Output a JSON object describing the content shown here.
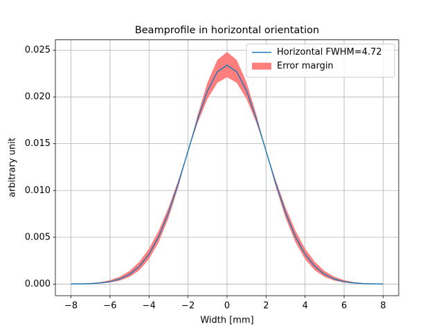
{
  "chart_data": {
    "type": "line",
    "title": "Beamprofile in horizontal orientation",
    "xlabel": "Width [mm]",
    "ylabel": "arbitrary unit",
    "x": [
      -8,
      -7.5,
      -7,
      -6.5,
      -6,
      -5.5,
      -5,
      -4.5,
      -4,
      -3.5,
      -3,
      -2.5,
      -2,
      -1.5,
      -1,
      -0.5,
      0,
      0.5,
      1,
      1.5,
      2,
      2.5,
      3,
      3.5,
      4,
      4.5,
      5,
      5.5,
      6,
      6.5,
      7,
      7.5,
      8
    ],
    "series": [
      {
        "name": "Horizontal FWHM=4.72",
        "color": "#1f77b4",
        "values": [
          1e-05,
          2e-05,
          5e-05,
          0.00012,
          0.00026,
          0.00054,
          0.00104,
          0.00188,
          0.00319,
          0.00509,
          0.00763,
          0.01075,
          0.01422,
          0.01768,
          0.02066,
          0.02268,
          0.0234,
          0.02268,
          0.02066,
          0.01768,
          0.01422,
          0.01075,
          0.00763,
          0.00509,
          0.00319,
          0.00188,
          0.00104,
          0.00054,
          0.00026,
          0.00012,
          5e-05,
          2e-05,
          1e-05
        ]
      },
      {
        "name": "Error margin",
        "color": "#ff7f7f",
        "upper": [
          2e-05,
          4e-05,
          0.0001,
          0.00021,
          0.00042,
          0.00079,
          0.0014,
          0.00237,
          0.00379,
          0.00573,
          0.00819,
          0.01109,
          0.01422,
          0.01812,
          0.02157,
          0.02395,
          0.0248,
          0.02395,
          0.02157,
          0.01812,
          0.01422,
          0.01109,
          0.00819,
          0.00573,
          0.00379,
          0.00237,
          0.0014,
          0.00079,
          0.00042,
          0.00021,
          0.0001,
          4e-05,
          2e-05
        ],
        "lower": [
          0.0,
          1e-05,
          3e-05,
          7e-05,
          0.00016,
          0.00037,
          0.00076,
          0.00147,
          0.00267,
          0.0045,
          0.00707,
          0.01038,
          0.0142,
          0.01725,
          0.01979,
          0.0215,
          0.0221,
          0.0215,
          0.01979,
          0.01725,
          0.0142,
          0.01038,
          0.00707,
          0.0045,
          0.00267,
          0.00147,
          0.00076,
          0.00037,
          0.00016,
          7e-05,
          3e-05,
          1e-05,
          0.0
        ]
      }
    ],
    "xlim": [
      -8.8,
      8.8
    ],
    "xticks": [
      {
        "value": -8,
        "label": "−8"
      },
      {
        "value": -6,
        "label": "−6"
      },
      {
        "value": -4,
        "label": "−4"
      },
      {
        "value": -2,
        "label": "−2"
      },
      0,
      2,
      4,
      6,
      8
    ],
    "ylim": [
      -0.00124,
      0.0261
    ],
    "yticks": [
      {
        "value": 0,
        "label": "0.000"
      },
      {
        "value": 0.005,
        "label": "0.005"
      },
      {
        "value": 0.01,
        "label": "0.010"
      },
      {
        "value": 0.015,
        "label": "0.015"
      },
      {
        "value": 0.02,
        "label": "0.020"
      },
      {
        "value": 0.025,
        "label": "0.025"
      }
    ],
    "grid": true,
    "legend": "upper right"
  }
}
